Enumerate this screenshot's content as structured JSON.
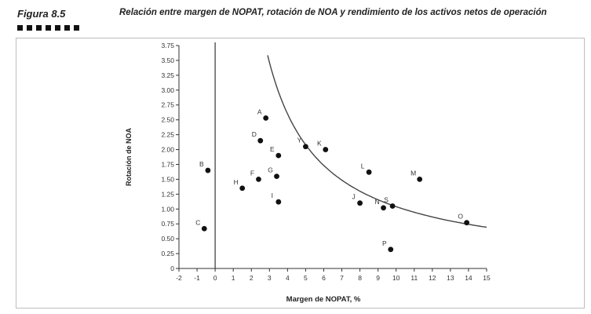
{
  "figure": {
    "label": "Figura 8.5",
    "title": "Relación entre margen de NOPAT, rotación de NOA y rendimiento de los activos netos de operación"
  },
  "chart_data": {
    "type": "scatter",
    "title": "Relación entre margen de NOPAT, rotación de NOA y rendimiento de los activos netos de operación",
    "xlabel": "Margen de NOPAT, %",
    "ylabel": "Rotación de NOA",
    "xlim": [
      -2,
      15
    ],
    "ylim": [
      0,
      3.75
    ],
    "x_ticks": [
      "-2",
      "-1",
      "0",
      "1",
      "2",
      "3",
      "4",
      "5",
      "6",
      "7",
      "8",
      "9",
      "10",
      "11",
      "12",
      "13",
      "14",
      "15"
    ],
    "y_ticks": [
      "0",
      "0.25",
      "0.50",
      "0.75",
      "1.00",
      "1.25",
      "1.50",
      "1.75",
      "2.00",
      "2.25",
      "2.50",
      "2.75",
      "3.00",
      "3.25",
      "3.50",
      "3.75"
    ],
    "grid": false,
    "points": [
      {
        "label": "A",
        "x": 2.8,
        "y": 2.53
      },
      {
        "label": "B",
        "x": -0.4,
        "y": 1.65
      },
      {
        "label": "C",
        "x": -0.6,
        "y": 0.67
      },
      {
        "label": "D",
        "x": 2.5,
        "y": 2.15
      },
      {
        "label": "E",
        "x": 3.5,
        "y": 1.9
      },
      {
        "label": "F",
        "x": 2.4,
        "y": 1.5
      },
      {
        "label": "G",
        "x": 3.4,
        "y": 1.55
      },
      {
        "label": "H",
        "x": 1.5,
        "y": 1.35
      },
      {
        "label": "I",
        "x": 3.5,
        "y": 1.12
      },
      {
        "label": "J",
        "x": 8.0,
        "y": 1.1
      },
      {
        "label": "K",
        "x": 6.1,
        "y": 2.0
      },
      {
        "label": "L",
        "x": 8.5,
        "y": 1.62
      },
      {
        "label": "M",
        "x": 11.3,
        "y": 1.5
      },
      {
        "label": "N",
        "x": 9.3,
        "y": 1.02
      },
      {
        "label": "O",
        "x": 13.9,
        "y": 0.77
      },
      {
        "label": "P",
        "x": 9.7,
        "y": 0.32
      },
      {
        "label": "S",
        "x": 9.8,
        "y": 1.05
      },
      {
        "label": "Y",
        "x": 5.0,
        "y": 2.05
      }
    ],
    "curve": {
      "constant_x_times_y": 10.4,
      "x_range": [
        2.9,
        15
      ]
    }
  }
}
